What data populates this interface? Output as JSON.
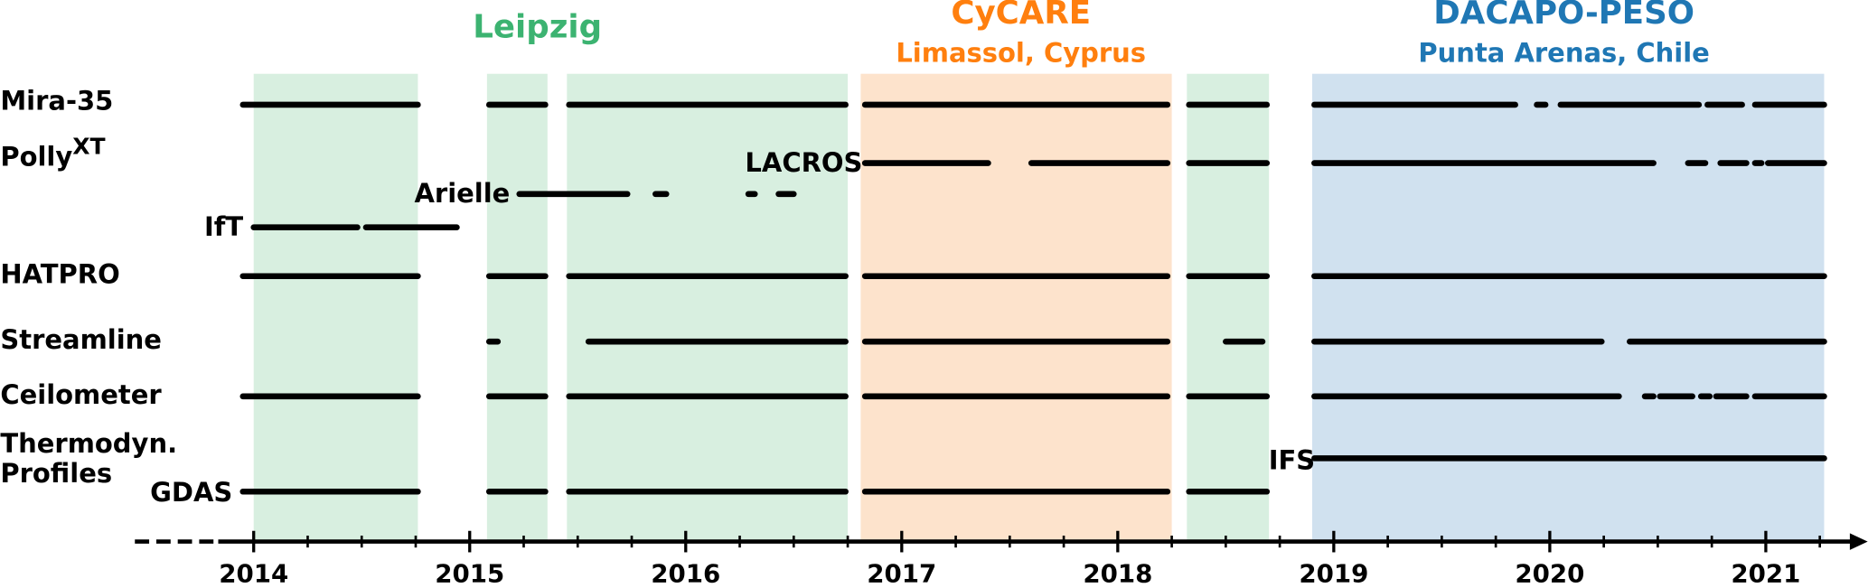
{
  "chart_data": {
    "type": "timeline",
    "color": "#000000",
    "xlim": [
      2013.45,
      2021.4
    ],
    "xticks": [
      2014,
      2015,
      2016,
      2017,
      2018,
      2019,
      2020,
      2021
    ],
    "minor_xticks": [
      2014.25,
      2014.5,
      2014.75,
      2015.25,
      2015.5,
      2015.75,
      2016.25,
      2016.5,
      2016.75,
      2017.25,
      2017.5,
      2017.75,
      2018.25,
      2018.5,
      2018.75,
      2019.25,
      2019.5,
      2019.75,
      2020.25,
      2020.5,
      2020.75,
      2021.25
    ],
    "campaigns": [
      {
        "name": "Leipzig",
        "color": "#3cb371",
        "fill": "#d8efe0",
        "spans": [
          [
            2014.0,
            2014.76
          ],
          [
            2015.08,
            2015.36
          ],
          [
            2015.45,
            2016.75
          ],
          [
            2018.32,
            2018.7
          ]
        ]
      },
      {
        "name": "CyCARE",
        "location": "Limassol, Cyprus",
        "color": "#ff7f0e",
        "fill": "#fde3cc",
        "spans": [
          [
            2016.81,
            2018.25
          ]
        ]
      },
      {
        "name": "DACAPO-PESO",
        "location": "Punta Arenas, Chile",
        "color": "#1f77b4",
        "fill": "#d0e1ef",
        "spans": [
          [
            2018.9,
            2021.27
          ]
        ]
      }
    ],
    "group_label": [
      "Thermodyn.",
      "Profiles"
    ],
    "series": [
      {
        "name": "Mira-35",
        "values": [
          [
            2013.95,
            2014.76
          ],
          [
            2015.09,
            2015.35
          ],
          [
            2015.46,
            2016.74
          ],
          [
            2016.83,
            2018.23
          ],
          [
            2018.33,
            2018.69
          ],
          [
            2018.91,
            2019.84
          ],
          [
            2019.94,
            2019.98
          ],
          [
            2020.05,
            2020.69
          ],
          [
            2020.73,
            2020.89
          ],
          [
            2020.95,
            2021.27
          ]
        ]
      },
      {
        "name": "Polly",
        "name_sup": "XT",
        "tag": "LACROS",
        "values": [
          [
            2016.83,
            2017.4
          ],
          [
            2017.6,
            2018.23
          ],
          [
            2018.33,
            2018.69
          ],
          [
            2018.91,
            2020.48
          ],
          [
            2020.64,
            2020.72
          ],
          [
            2020.79,
            2020.91
          ],
          [
            2020.95,
            2020.98
          ],
          [
            2021.01,
            2021.27
          ]
        ]
      },
      {
        "tag": "Arielle",
        "values": [
          [
            2015.23,
            2015.73
          ],
          [
            2015.86,
            2015.91
          ],
          [
            2016.29,
            2016.32
          ],
          [
            2016.43,
            2016.5
          ]
        ]
      },
      {
        "tag": "IfT",
        "values": [
          [
            2014.0,
            2014.48
          ],
          [
            2014.52,
            2014.94
          ]
        ]
      },
      {
        "name": "HATPRO",
        "values": [
          [
            2013.95,
            2014.76
          ],
          [
            2015.09,
            2015.35
          ],
          [
            2015.46,
            2016.74
          ],
          [
            2016.83,
            2018.23
          ],
          [
            2018.33,
            2018.69
          ],
          [
            2018.91,
            2021.27
          ]
        ]
      },
      {
        "name": "Streamline",
        "values": [
          [
            2015.09,
            2015.13
          ],
          [
            2015.55,
            2016.74
          ],
          [
            2016.83,
            2018.23
          ],
          [
            2018.5,
            2018.67
          ],
          [
            2018.91,
            2020.24
          ],
          [
            2020.37,
            2021.27
          ]
        ]
      },
      {
        "name": "Ceilometer",
        "values": [
          [
            2013.95,
            2014.76
          ],
          [
            2015.09,
            2015.35
          ],
          [
            2015.46,
            2016.74
          ],
          [
            2016.83,
            2018.23
          ],
          [
            2018.33,
            2018.69
          ],
          [
            2018.91,
            2020.32
          ],
          [
            2020.44,
            2020.48
          ],
          [
            2020.51,
            2020.66
          ],
          [
            2020.7,
            2020.74
          ],
          [
            2020.77,
            2020.91
          ],
          [
            2020.95,
            2021.27
          ]
        ]
      },
      {
        "tag": "IFS",
        "values": [
          [
            2018.91,
            2021.27
          ]
        ]
      },
      {
        "tag": "GDAS",
        "values": [
          [
            2013.95,
            2014.76
          ],
          [
            2015.09,
            2015.35
          ],
          [
            2015.46,
            2016.74
          ],
          [
            2016.83,
            2018.23
          ],
          [
            2018.33,
            2018.69
          ]
        ]
      }
    ]
  }
}
